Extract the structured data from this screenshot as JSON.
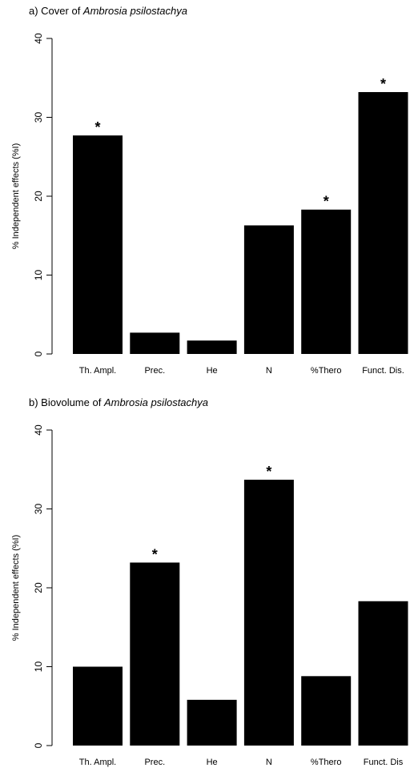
{
  "chart_data": [
    {
      "type": "bar",
      "title_prefix": "a) Cover of ",
      "title_species": "Ambrosia psilostachya",
      "ylabel": "% Independent effects (%I)",
      "xlabel": "",
      "ylim": [
        0,
        40
      ],
      "yticks": [
        0,
        10,
        20,
        30,
        40
      ],
      "categories": [
        "Th. Ampl.",
        "Prec.",
        "He",
        "N",
        "%Thero",
        "Funct. Dis."
      ],
      "values": [
        27.7,
        2.7,
        1.7,
        16.3,
        18.3,
        33.2
      ],
      "significant": [
        true,
        false,
        false,
        false,
        true,
        true
      ],
      "significance_marker": "*",
      "bar_color": "#000000",
      "grid": false
    },
    {
      "type": "bar",
      "title_prefix": "b) Biovolume of ",
      "title_species": "Ambrosia psilostachya",
      "ylabel": "% Independent effects (%I)",
      "xlabel": "",
      "ylim": [
        0,
        40
      ],
      "yticks": [
        0,
        10,
        20,
        30,
        40
      ],
      "categories": [
        "Th. Ampl.",
        "Prec.",
        "He",
        "N",
        "%Thero",
        "Funct. Dis"
      ],
      "values": [
        10.0,
        23.2,
        5.8,
        33.7,
        8.8,
        18.3
      ],
      "significant": [
        false,
        true,
        false,
        true,
        false,
        false
      ],
      "significance_marker": "*",
      "bar_color": "#000000",
      "grid": false
    }
  ]
}
